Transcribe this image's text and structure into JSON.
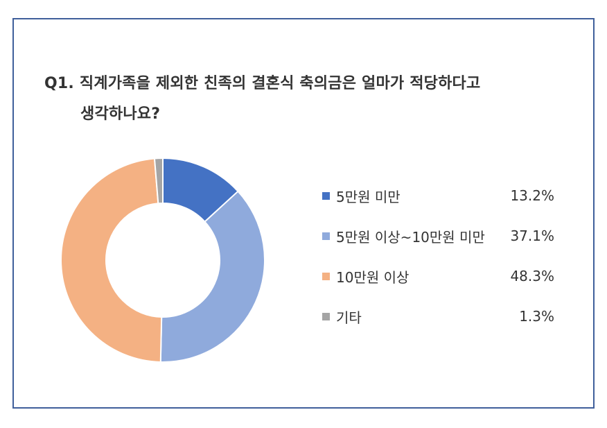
{
  "chart_data": {
    "type": "pie",
    "subtype": "donut",
    "title_line1": "Q1. 직계가족을 제외한 친족의 결혼식 축의금은 얼마가 적당하다고",
    "title_line2": "생각하나요?",
    "legend_position": "right",
    "slices": [
      {
        "label": "5만원 미만",
        "value": 13.2,
        "value_label": "13.2%",
        "color": "#4472c4"
      },
      {
        "label": "5만원 이상~10만원 미만",
        "value": 37.1,
        "value_label": "37.1%",
        "color": "#8faadc"
      },
      {
        "label": "10만원 이상",
        "value": 48.3,
        "value_label": "48.3%",
        "color": "#f4b183"
      },
      {
        "label": "기타",
        "value": 1.3,
        "value_label": "1.3%",
        "color": "#a5a5a5"
      }
    ]
  }
}
